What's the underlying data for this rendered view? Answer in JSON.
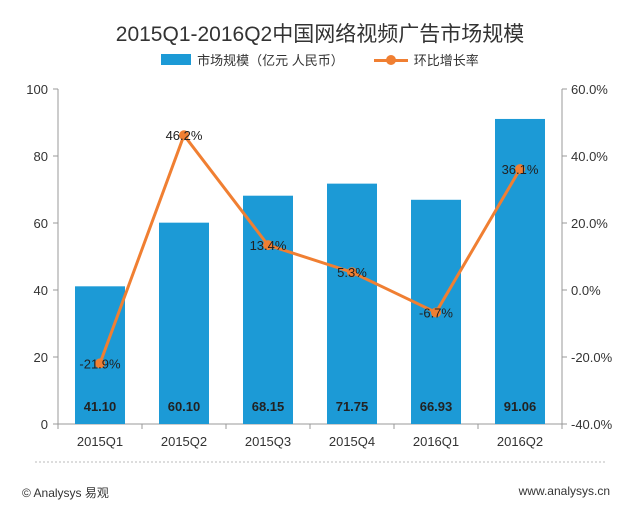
{
  "chart_data": {
    "type": "bar",
    "title": "2015Q1-2016Q2中国网络视频广告市场规模",
    "categories": [
      "2015Q1",
      "2015Q2",
      "2015Q3",
      "2015Q4",
      "2016Q1",
      "2016Q2"
    ],
    "series": [
      {
        "name": "市场规模（亿元  人民币）",
        "type": "bar",
        "axis": "left",
        "values": [
          41.1,
          60.1,
          68.15,
          71.75,
          66.93,
          91.06
        ],
        "labels": [
          "41.10",
          "60.10",
          "68.15",
          "71.75",
          "66.93",
          "91.06"
        ],
        "color": "#1c9ad6"
      },
      {
        "name": "环比增长率",
        "type": "line",
        "axis": "right",
        "values": [
          -21.9,
          46.2,
          13.4,
          5.3,
          -6.7,
          36.1
        ],
        "labels": [
          "-21.9%",
          "46.2%",
          "13.4%",
          "5.3%",
          "-6.7%",
          "36.1%"
        ],
        "color": "#f07f32"
      }
    ],
    "left_axis": {
      "min": 0,
      "max": 100,
      "ticks": [
        "0",
        "20",
        "40",
        "60",
        "80",
        "100"
      ]
    },
    "right_axis": {
      "min": -40,
      "max": 60,
      "ticks": [
        "-40.0%",
        "-20.0%",
        "0.0%",
        "20.0%",
        "40.0%",
        "60.0%"
      ]
    },
    "legend_position": "top-center",
    "grid": false
  },
  "footer": {
    "copyright": "© Analysys 易观",
    "website": "www.analysys.cn"
  }
}
